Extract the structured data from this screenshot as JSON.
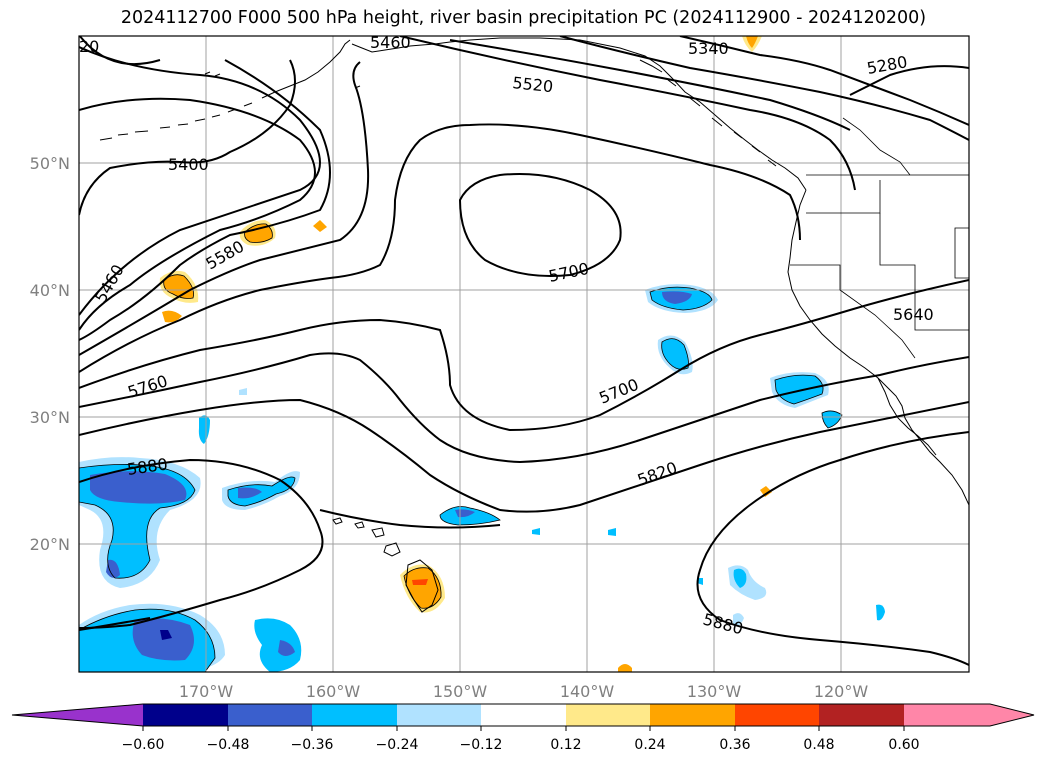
{
  "title": "2024112700 F000 500 hPa height, river basin precipitation PC (2024112900 - 2024120200)",
  "lat_labels": [
    "50°N",
    "40°N",
    "30°N",
    "20°N"
  ],
  "lon_labels": [
    "170°W",
    "160°W",
    "150°W",
    "140°W",
    "130°W",
    "120°W"
  ],
  "contour_labels": [
    "20",
    "5460",
    "5340",
    "5520",
    "5280",
    "5400",
    "5580",
    "5460",
    "5700",
    "5640",
    "5760",
    "5700",
    "5880",
    "5820",
    "5880"
  ],
  "colorbar": {
    "ticks": [
      "−0.60",
      "−0.48",
      "−0.36",
      "−0.24",
      "−0.12",
      "0.12",
      "0.24",
      "0.36",
      "0.48",
      "0.60"
    ],
    "colors": [
      "#9932cc",
      "#00008b",
      "#3a5fcd",
      "#00bfff",
      "#b0e2ff",
      "#ffffff",
      "#ffe98a",
      "#ffa500",
      "#ff4500",
      "#b22222",
      "#ff86a8",
      "#ff86a8"
    ]
  },
  "colors": {
    "pos_low": "#ffe98a",
    "pos_mid": "#ffa500",
    "pos_high": "#ff4500",
    "neg_low": "#b0e2ff",
    "neg_mid": "#00bfff",
    "neg_high": "#3a5fcd",
    "neg_max": "#00008b",
    "grid": "#a0a0a0"
  }
}
